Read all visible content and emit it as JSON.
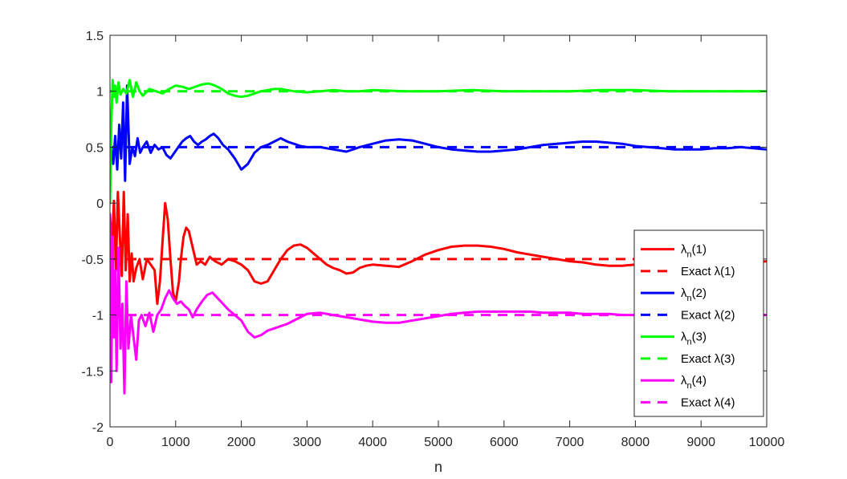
{
  "chart_data": {
    "type": "line",
    "title": "",
    "xlabel": "n",
    "ylabel": "",
    "xlim": [
      0,
      10000
    ],
    "ylim": [
      -2,
      1.5
    ],
    "xticks": [
      0,
      1000,
      2000,
      3000,
      4000,
      5000,
      6000,
      7000,
      8000,
      9000,
      10000
    ],
    "xtick_labels": [
      "0",
      "1000",
      "2000",
      "3000",
      "4000",
      "5000",
      "6000",
      "7000",
      "8000",
      "9000",
      "10000"
    ],
    "yticks": [
      -2,
      -1.5,
      -1,
      -0.5,
      0,
      0.5,
      1,
      1.5
    ],
    "ytick_labels": [
      "-2",
      "-1.5",
      "-1",
      "-0.5",
      "0",
      "0.5",
      "1",
      "1.5"
    ],
    "grid": false,
    "legend_position": "bottom-right",
    "series": [
      {
        "name": "λn(1)",
        "legend_main": "λ",
        "legend_sub": "n",
        "legend_suffix": "(1)",
        "color": "#ff0000",
        "style": "solid",
        "x": [
          0,
          30,
          60,
          90,
          120,
          150,
          180,
          210,
          240,
          270,
          300,
          330,
          360,
          400,
          450,
          500,
          560,
          620,
          680,
          720,
          760,
          800,
          840,
          880,
          920,
          960,
          1000,
          1050,
          1080,
          1120,
          1160,
          1200,
          1260,
          1320,
          1380,
          1450,
          1520,
          1600,
          1700,
          1800,
          1900,
          2000,
          2100,
          2200,
          2300,
          2400,
          2500,
          2600,
          2700,
          2800,
          2900,
          3000,
          3100,
          3200,
          3300,
          3400,
          3500,
          3600,
          3700,
          3800,
          3900,
          4000,
          4200,
          4400,
          4600,
          4800,
          5000,
          5200,
          5400,
          5600,
          5800,
          6000,
          6200,
          6400,
          6600,
          6800,
          7000,
          7200,
          7400,
          7600,
          7800,
          8000,
          8200,
          8400,
          8600,
          8800,
          9000,
          9200,
          9400,
          9600,
          9800,
          10000
        ],
        "y": [
          -0.1,
          -0.4,
          0.02,
          -0.6,
          0.1,
          -0.3,
          -0.65,
          0.1,
          -0.6,
          -0.1,
          -0.7,
          -0.45,
          -0.7,
          -0.58,
          -0.5,
          -0.68,
          -0.5,
          -0.55,
          -0.6,
          -0.9,
          -0.7,
          -0.35,
          0.0,
          -0.15,
          -0.5,
          -0.8,
          -0.88,
          -0.7,
          -0.5,
          -0.3,
          -0.22,
          -0.25,
          -0.4,
          -0.55,
          -0.52,
          -0.55,
          -0.48,
          -0.52,
          -0.55,
          -0.5,
          -0.52,
          -0.55,
          -0.6,
          -0.7,
          -0.72,
          -0.7,
          -0.6,
          -0.5,
          -0.42,
          -0.38,
          -0.37,
          -0.4,
          -0.45,
          -0.5,
          -0.55,
          -0.58,
          -0.6,
          -0.63,
          -0.62,
          -0.58,
          -0.56,
          -0.55,
          -0.56,
          -0.57,
          -0.52,
          -0.46,
          -0.42,
          -0.39,
          -0.38,
          -0.38,
          -0.39,
          -0.41,
          -0.44,
          -0.46,
          -0.48,
          -0.5,
          -0.52,
          -0.53,
          -0.55,
          -0.56,
          -0.56,
          -0.55,
          -0.54,
          -0.53,
          -0.53,
          -0.54,
          -0.55,
          -0.55,
          -0.55,
          -0.54,
          -0.53,
          -0.52
        ]
      },
      {
        "name": "Exact λ(1)",
        "legend_main": "Exact λ(1)",
        "color": "#ff0000",
        "style": "dashed",
        "x": [
          0,
          10000
        ],
        "y": [
          -0.5,
          -0.5
        ]
      },
      {
        "name": "λn(2)",
        "legend_main": "λ",
        "legend_sub": "n",
        "legend_suffix": "(2)",
        "color": "#0000ff",
        "style": "solid",
        "x": [
          20,
          50,
          80,
          110,
          140,
          170,
          200,
          230,
          260,
          300,
          340,
          380,
          420,
          460,
          500,
          560,
          620,
          680,
          740,
          800,
          860,
          920,
          980,
          1040,
          1100,
          1160,
          1220,
          1280,
          1340,
          1400,
          1460,
          1520,
          1580,
          1650,
          1720,
          1800,
          1900,
          2000,
          2100,
          2200,
          2300,
          2400,
          2500,
          2600,
          2700,
          2800,
          2900,
          3000,
          3200,
          3400,
          3600,
          3800,
          4000,
          4200,
          4400,
          4600,
          4800,
          5000,
          5200,
          5400,
          5600,
          5800,
          6000,
          6200,
          6400,
          6600,
          6800,
          7000,
          7200,
          7400,
          7600,
          7800,
          8000,
          8200,
          8400,
          8600,
          8800,
          9000,
          9200,
          9400,
          9600,
          9800,
          10000
        ],
        "y": [
          0.5,
          0.35,
          0.6,
          0.3,
          0.7,
          0.4,
          0.9,
          0.2,
          1.05,
          0.35,
          0.5,
          0.42,
          0.58,
          0.45,
          0.5,
          0.55,
          0.45,
          0.52,
          0.48,
          0.5,
          0.43,
          0.4,
          0.45,
          0.5,
          0.55,
          0.58,
          0.6,
          0.55,
          0.52,
          0.55,
          0.57,
          0.6,
          0.62,
          0.58,
          0.52,
          0.48,
          0.4,
          0.3,
          0.35,
          0.45,
          0.5,
          0.52,
          0.55,
          0.58,
          0.55,
          0.53,
          0.51,
          0.5,
          0.5,
          0.48,
          0.46,
          0.5,
          0.53,
          0.56,
          0.57,
          0.56,
          0.53,
          0.5,
          0.48,
          0.47,
          0.46,
          0.46,
          0.47,
          0.48,
          0.5,
          0.52,
          0.53,
          0.54,
          0.55,
          0.55,
          0.54,
          0.53,
          0.51,
          0.5,
          0.49,
          0.48,
          0.48,
          0.48,
          0.49,
          0.49,
          0.5,
          0.49,
          0.48
        ]
      },
      {
        "name": "Exact λ(2)",
        "legend_main": "Exact λ(2)",
        "color": "#0000ff",
        "style": "dashed",
        "x": [
          0,
          10000
        ],
        "y": [
          0.5,
          0.5
        ]
      },
      {
        "name": "λn(3)",
        "legend_main": "λ",
        "legend_sub": "n",
        "legend_suffix": "(3)",
        "color": "#00ff00",
        "style": "solid",
        "x": [
          0,
          20,
          40,
          60,
          80,
          100,
          130,
          160,
          200,
          250,
          300,
          350,
          400,
          450,
          500,
          600,
          700,
          800,
          900,
          1000,
          1100,
          1200,
          1300,
          1400,
          1500,
          1600,
          1700,
          1800,
          1900,
          2000,
          2100,
          2200,
          2300,
          2400,
          2500,
          2600,
          2700,
          2800,
          3000,
          3200,
          3400,
          3600,
          3800,
          4000,
          4500,
          5000,
          5500,
          6000,
          6500,
          7000,
          7500,
          8000,
          8500,
          9000,
          9500,
          10000
        ],
        "y": [
          0.0,
          0.7,
          1.1,
          0.95,
          1.05,
          0.9,
          1.08,
          0.97,
          1.02,
          0.98,
          1.1,
          0.95,
          1.08,
          1.0,
          0.96,
          1.02,
          1.0,
          0.98,
          1.02,
          1.05,
          1.04,
          1.02,
          1.04,
          1.06,
          1.07,
          1.05,
          1.02,
          0.98,
          0.96,
          0.95,
          0.96,
          0.98,
          1.0,
          1.01,
          1.02,
          1.02,
          1.01,
          1.0,
          0.99,
          1.0,
          1.01,
          1.0,
          1.0,
          1.01,
          1.0,
          1.0,
          1.01,
          1.0,
          1.0,
          1.0,
          1.01,
          1.01,
          1.0,
          1.0,
          1.0,
          1.0
        ]
      },
      {
        "name": "Exact λ(3)",
        "legend_main": "Exact λ(3)",
        "color": "#00ff00",
        "style": "dashed",
        "x": [
          0,
          10000
        ],
        "y": [
          1.0,
          1.0
        ]
      },
      {
        "name": "λn(4)",
        "legend_main": "λ",
        "legend_sub": "n",
        "legend_suffix": "(4)",
        "color": "#ff00ff",
        "style": "solid",
        "x": [
          0,
          20,
          40,
          60,
          80,
          100,
          130,
          160,
          190,
          220,
          250,
          280,
          320,
          360,
          400,
          440,
          480,
          540,
          600,
          660,
          720,
          780,
          840,
          900,
          960,
          1020,
          1080,
          1140,
          1200,
          1260,
          1320,
          1400,
          1480,
          1560,
          1640,
          1720,
          1800,
          1900,
          2000,
          2100,
          2200,
          2300,
          2400,
          2500,
          2600,
          2700,
          2800,
          2900,
          3000,
          3200,
          3400,
          3600,
          3800,
          4000,
          4200,
          4400,
          4600,
          4800,
          5000,
          5200,
          5400,
          5600,
          5800,
          6000,
          6200,
          6400,
          6600,
          6800,
          7000,
          7200,
          7400,
          7600,
          7800,
          8000,
          8200,
          8400,
          8600,
          8800,
          9000,
          9200,
          9400,
          9600,
          9800,
          10000
        ],
        "y": [
          -0.1,
          -1.6,
          -0.3,
          -1.2,
          -0.6,
          -1.5,
          -0.4,
          -1.3,
          -0.9,
          -1.7,
          -0.7,
          -1.3,
          -1.0,
          -1.2,
          -1.4,
          -1.05,
          -1.0,
          -1.1,
          -0.98,
          -1.15,
          -1.0,
          -0.95,
          -0.85,
          -0.78,
          -0.85,
          -0.9,
          -0.88,
          -0.92,
          -0.95,
          -1.02,
          -0.95,
          -0.88,
          -0.82,
          -0.8,
          -0.85,
          -0.9,
          -0.95,
          -1.0,
          -1.05,
          -1.15,
          -1.2,
          -1.18,
          -1.14,
          -1.12,
          -1.1,
          -1.08,
          -1.05,
          -1.02,
          -0.99,
          -0.98,
          -1.0,
          -1.02,
          -1.04,
          -1.06,
          -1.07,
          -1.07,
          -1.05,
          -1.03,
          -1.01,
          -0.99,
          -0.98,
          -0.97,
          -0.97,
          -0.97,
          -0.97,
          -0.97,
          -0.98,
          -0.98,
          -0.98,
          -0.99,
          -0.99,
          -0.99,
          -1.0,
          -1.0,
          -1.0,
          -1.01,
          -1.0,
          -1.0,
          -1.0,
          -1.0,
          -1.0,
          -1.0,
          -1.0,
          -1.0
        ]
      },
      {
        "name": "Exact λ(4)",
        "legend_main": "Exact λ(4)",
        "color": "#ff00ff",
        "style": "dashed",
        "x": [
          0,
          10000
        ],
        "y": [
          -1.0,
          -1.0
        ]
      }
    ]
  }
}
